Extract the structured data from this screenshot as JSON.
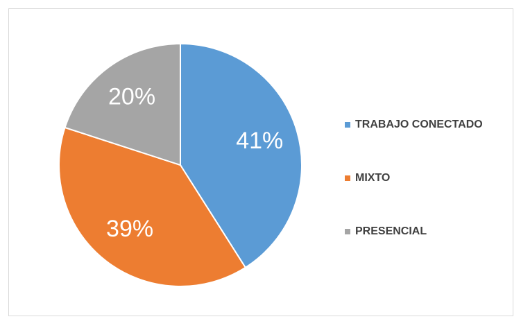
{
  "chart_data": {
    "type": "pie",
    "categories": [
      "TRABAJO CONECTADO",
      "MIXTO",
      "PRESENCIAL"
    ],
    "values": [
      41,
      39,
      20
    ],
    "value_labels": [
      "41%",
      "39%",
      "20%"
    ],
    "colors": [
      "#5b9bd5",
      "#ed7d31",
      "#a5a5a5"
    ],
    "legend": "right"
  }
}
